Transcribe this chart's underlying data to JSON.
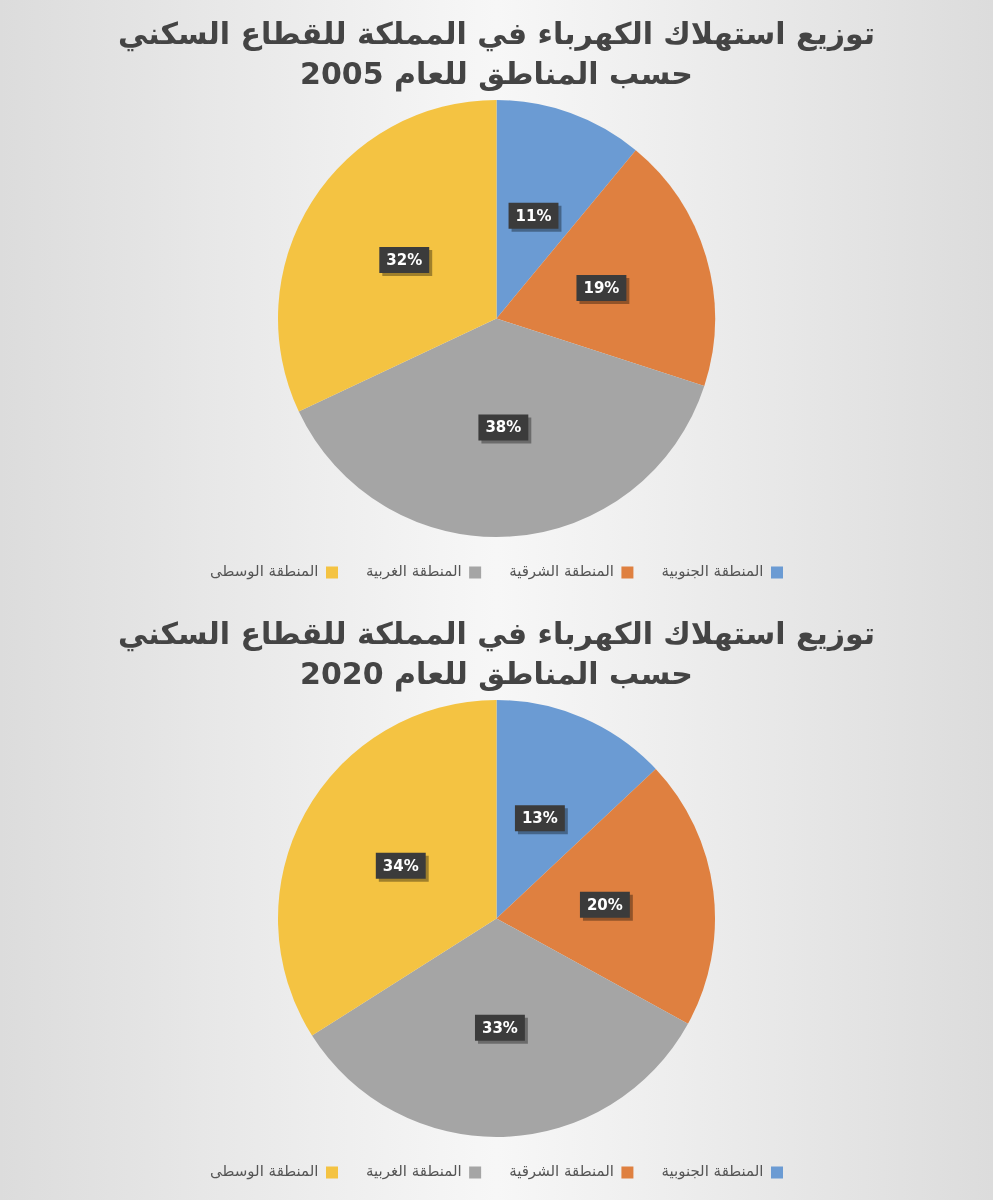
{
  "chart_data": [
    {
      "type": "pie",
      "title": "توزيع استهلاك الكهرباء في المملكة للقطاع السكني حسب المناطق للعام 2005",
      "categories": [
        "المنطقة الجنوبية",
        "المنطقة الشرقية",
        "المنطقة الغربية",
        "المنطقة الوسطى"
      ],
      "values": [
        11,
        19,
        38,
        32
      ],
      "value_labels": [
        "11%",
        "19%",
        "38%",
        "32%"
      ],
      "colors": [
        "#6b9bd3",
        "#df8040",
        "#a5a5a5",
        "#f4c342"
      ],
      "legend": "bottom"
    },
    {
      "type": "pie",
      "title": "توزيع استهلاك الكهرباء في المملكة للقطاع السكني حسب المناطق للعام 2020",
      "categories": [
        "المنطقة الجنوبية",
        "المنطقة الشرقية",
        "المنطقة الغربية",
        "المنطقة الوسطى"
      ],
      "values": [
        13,
        20,
        33,
        34
      ],
      "value_labels": [
        "13%",
        "20%",
        "33%",
        "34%"
      ],
      "colors": [
        "#6b9bd3",
        "#df8040",
        "#a5a5a5",
        "#f4c342"
      ],
      "legend": "bottom"
    }
  ]
}
